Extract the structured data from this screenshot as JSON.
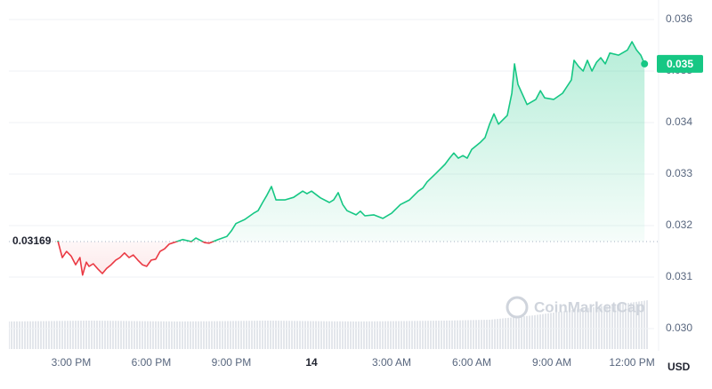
{
  "chart_data": {
    "type": "line",
    "x": [
      14.5,
      14.67,
      14.83,
      15,
      15.17,
      15.33,
      15.43,
      15.57,
      15.67,
      15.83,
      16,
      16.17,
      16.33,
      16.5,
      16.67,
      16.83,
      17,
      17.17,
      17.33,
      17.5,
      17.67,
      17.83,
      18,
      18.17,
      18.33,
      18.5,
      18.67,
      18.83,
      19.17,
      19.5,
      19.67,
      20,
      20.17,
      20.5,
      20.83,
      21,
      21.17,
      21.5,
      21.83,
      22,
      22.17,
      22.33,
      22.5,
      22.67,
      23,
      23.33,
      23.67,
      23.83,
      24,
      24.33,
      24.67,
      24.83,
      25,
      25.17,
      25.33,
      25.67,
      25.83,
      26,
      26.33,
      26.67,
      27,
      27.33,
      27.67,
      28,
      28.17,
      28.33,
      28.67,
      29,
      29.17,
      29.33,
      29.5,
      29.67,
      29.83,
      30,
      30.33,
      30.5,
      30.67,
      30.83,
      31,
      31.33,
      31.5,
      31.6,
      31.73,
      32.07,
      32.4,
      32.57,
      32.73,
      33.07,
      33.4,
      33.73,
      33.83,
      34,
      34.17,
      34.33,
      34.5,
      34.67,
      34.83,
      35,
      35.17,
      35.5,
      35.83,
      36,
      36.17,
      36.33,
      36.47
    ],
    "values": [
      0.03171,
      0.03138,
      0.0315,
      0.03141,
      0.03124,
      0.03138,
      0.03104,
      0.03129,
      0.03121,
      0.03126,
      0.03116,
      0.03107,
      0.03117,
      0.03124,
      0.03133,
      0.03138,
      0.03147,
      0.03138,
      0.03143,
      0.03133,
      0.03124,
      0.03121,
      0.03133,
      0.03135,
      0.0315,
      0.03155,
      0.03164,
      0.03167,
      0.03173,
      0.03169,
      0.03176,
      0.03167,
      0.03166,
      0.03173,
      0.03179,
      0.0319,
      0.03204,
      0.03212,
      0.03224,
      0.03229,
      0.03245,
      0.03259,
      0.03276,
      0.0325,
      0.0325,
      0.03255,
      0.03267,
      0.03262,
      0.03267,
      0.03254,
      0.03245,
      0.0325,
      0.03264,
      0.03241,
      0.03229,
      0.03221,
      0.03228,
      0.03219,
      0.03221,
      0.03214,
      0.03224,
      0.03241,
      0.0325,
      0.03267,
      0.03273,
      0.03285,
      0.03302,
      0.03319,
      0.03331,
      0.03341,
      0.03331,
      0.03336,
      0.03331,
      0.03348,
      0.03362,
      0.03371,
      0.03397,
      0.03417,
      0.03397,
      0.03414,
      0.03457,
      0.03514,
      0.03474,
      0.03435,
      0.03445,
      0.03462,
      0.03448,
      0.03445,
      0.03457,
      0.03483,
      0.03521,
      0.03509,
      0.035,
      0.03521,
      0.035,
      0.03517,
      0.03526,
      0.03514,
      0.03535,
      0.03531,
      0.03541,
      0.03557,
      0.03541,
      0.03531,
      0.03514
    ],
    "baseline": 0.03169,
    "color_above": "#16c784",
    "color_below": "#ea3943",
    "xlim": [
      12.67,
      36.83
    ],
    "xticks": [
      {
        "value": 15,
        "label": "3:00 PM"
      },
      {
        "value": 18,
        "label": "6:00 PM"
      },
      {
        "value": 21,
        "label": "9:00 PM"
      },
      {
        "value": 24,
        "label": "14"
      },
      {
        "value": 27,
        "label": "3:00 AM"
      },
      {
        "value": 30,
        "label": "6:00 AM"
      },
      {
        "value": 33,
        "label": "9:00 AM"
      },
      {
        "value": 36,
        "label": "12:00 PM"
      }
    ],
    "ylim": [
      0.02957,
      0.03638
    ],
    "yticks": [
      {
        "value": 0.03,
        "label": "0.030"
      },
      0.031,
      0.032,
      0.033,
      0.034,
      0.035,
      0.036
    ],
    "grid": true,
    "price_label": {
      "value": 0.03514,
      "label": "0.035"
    },
    "currency": "USD",
    "watermark": "CoinMarketCap"
  }
}
